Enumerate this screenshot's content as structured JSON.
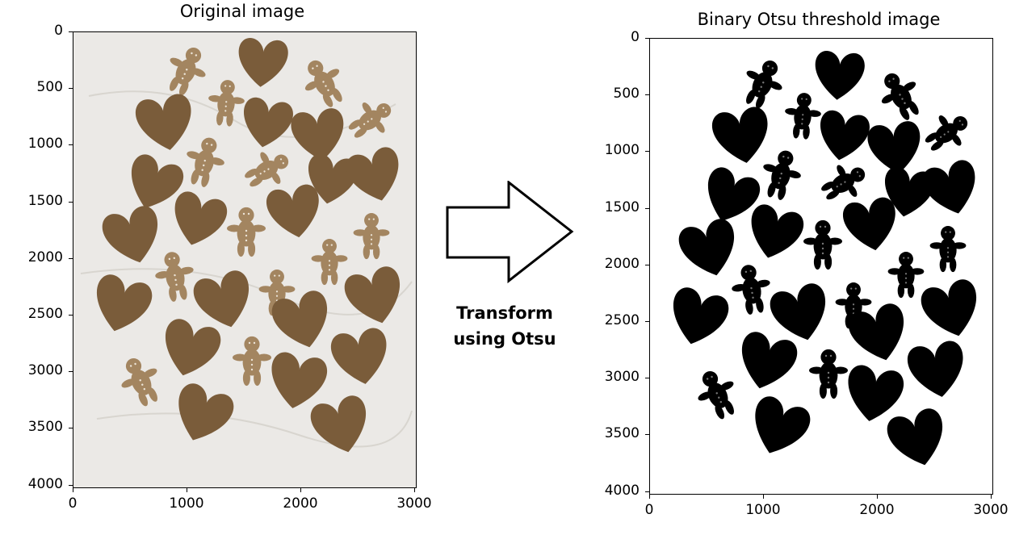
{
  "left_panel": {
    "title": "Original image",
    "y_ticks": [
      "0",
      "500",
      "1000",
      "1500",
      "2000",
      "2500",
      "3000",
      "3500",
      "4000"
    ],
    "x_ticks": [
      "0",
      "1000",
      "2000",
      "3000"
    ],
    "background_color": "#ebe9e6",
    "cookie_color": "#7a5c3a",
    "gingerbread_color": "#a38560"
  },
  "right_panel": {
    "title": "Binary Otsu threshold image",
    "y_ticks": [
      "0",
      "500",
      "1000",
      "1500",
      "2000",
      "2500",
      "3000",
      "3500",
      "4000"
    ],
    "x_ticks": [
      "0",
      "1000",
      "2000",
      "3000"
    ],
    "background_color": "#ffffff",
    "shape_color": "#000000"
  },
  "arrow": {
    "caption_line1": "Transform",
    "caption_line2": "using Otsu",
    "icon": "right-arrow-icon"
  }
}
